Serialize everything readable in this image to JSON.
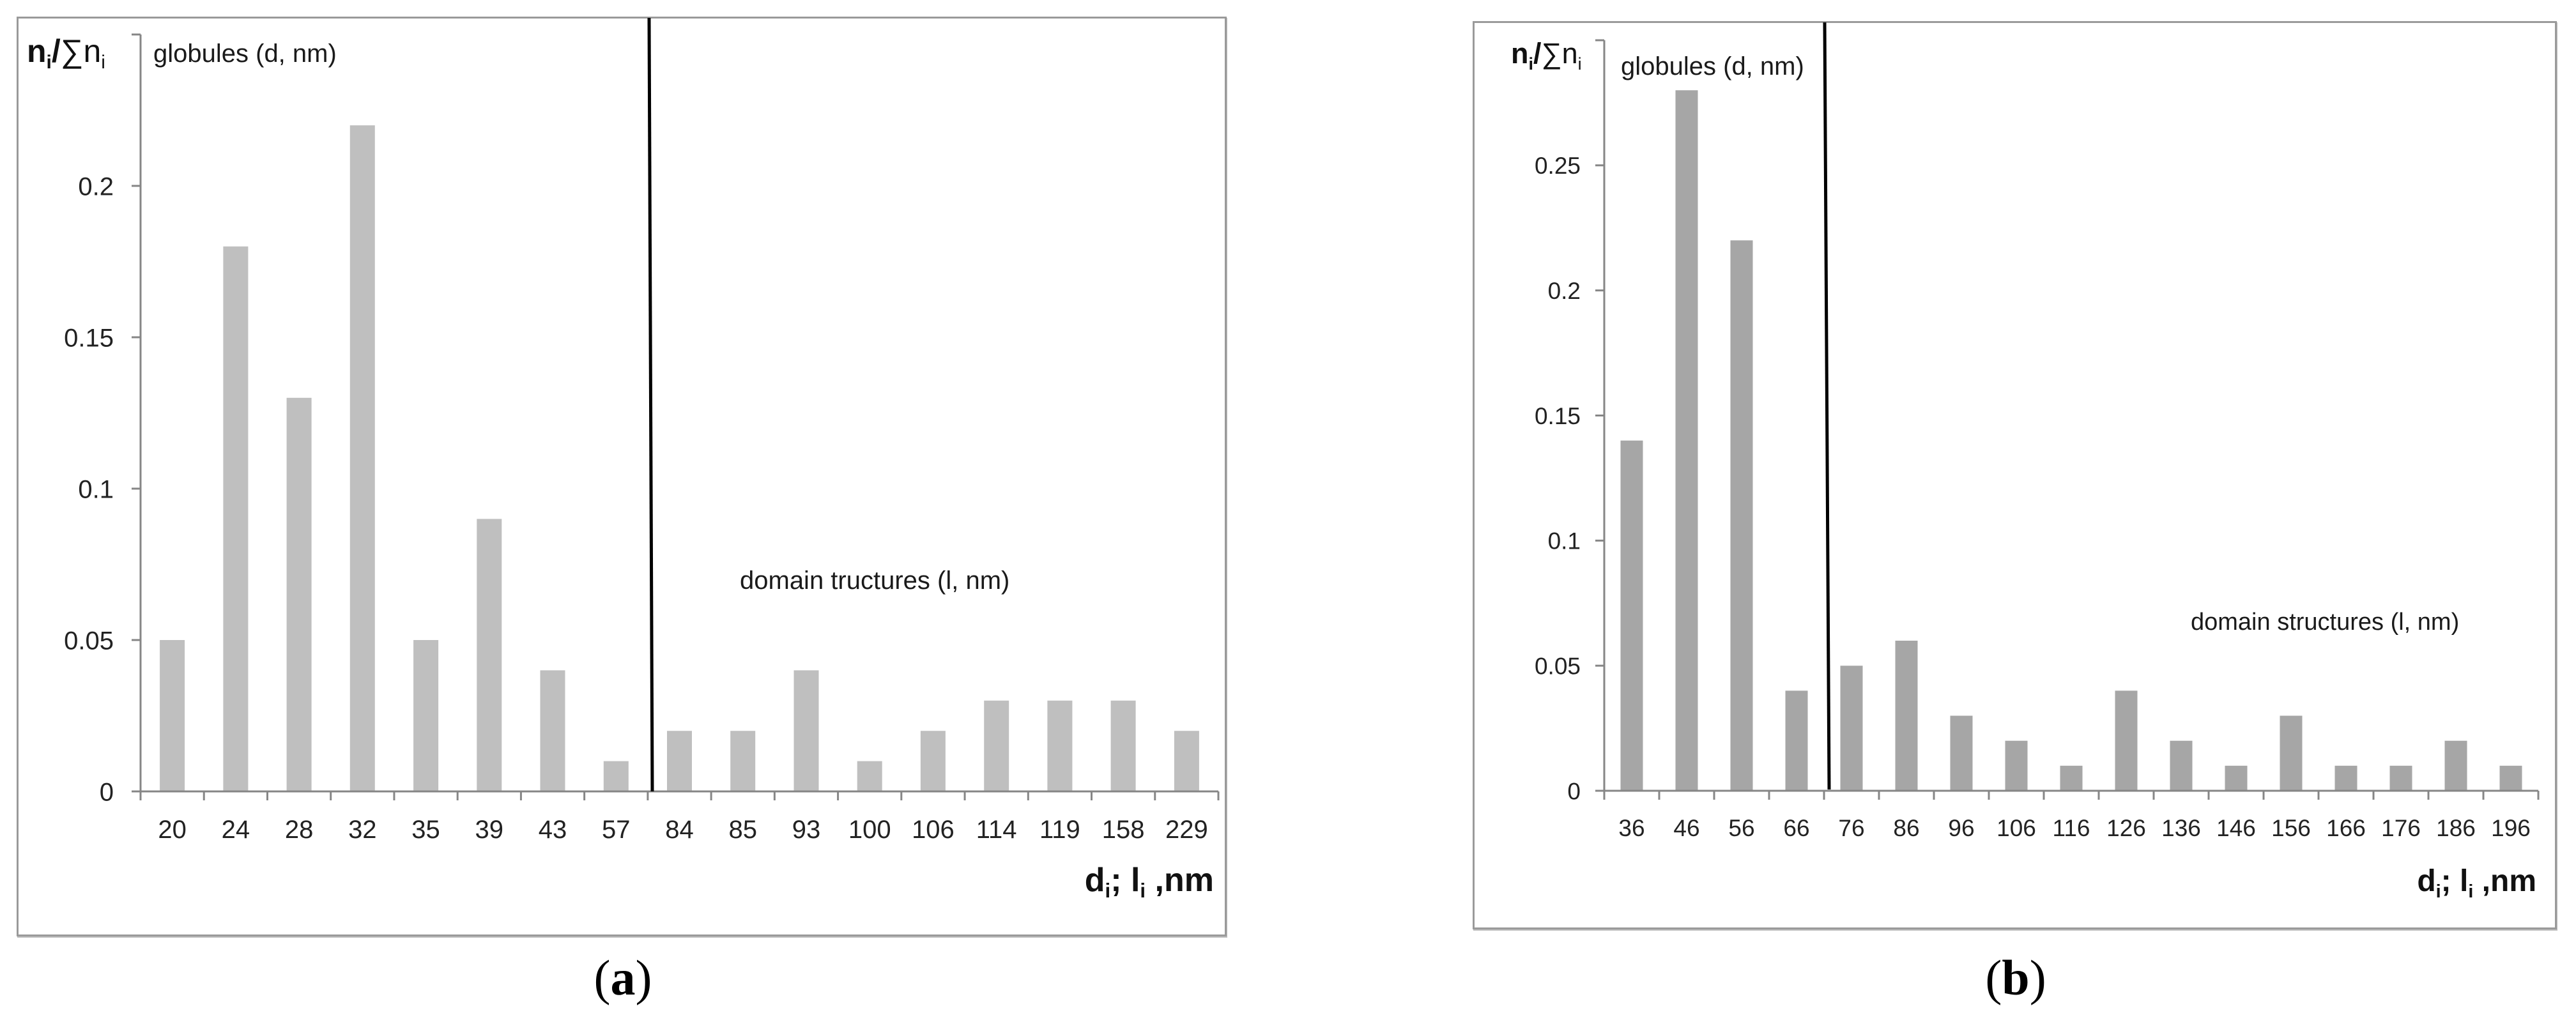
{
  "figure": {
    "panels": [
      {
        "id": "a",
        "caption": {
          "open": "(",
          "letter": "a",
          "close": ")"
        },
        "y_axis_title": {
          "bold_part": "n",
          "bold_sub": "i",
          "slash": "/",
          "sum_symbol": "∑",
          "regular_part": "n",
          "regular_sub": "i"
        },
        "x_axis_title": {
          "d": "d",
          "d_sub": "i",
          "sep": "; ",
          "l": "l",
          "l_sub": "i",
          "unit": " ,nm"
        },
        "annotations": {
          "left_region": "globules (d, nm)",
          "right_region": "domain tructures  (l, nm)"
        }
      },
      {
        "id": "b",
        "caption": {
          "open": "(",
          "letter": "b",
          "close": ")"
        },
        "y_axis_title": {
          "bold_part": "n",
          "bold_sub": "i",
          "slash": "/",
          "sum_symbol": "∑",
          "regular_part": "n",
          "regular_sub": "i"
        },
        "x_axis_title": {
          "d": "d",
          "d_sub": "i",
          "sep": "; ",
          "l": "l",
          "l_sub": "i",
          "unit": " ,nm"
        },
        "annotations": {
          "left_region": "globules (d, nm)",
          "right_region": "domain structures (l, nm)"
        }
      }
    ]
  },
  "chart_data": [
    {
      "type": "bar",
      "panel": "a",
      "title": "",
      "xlabel": "di; li ,nm",
      "ylabel": "ni/∑ni",
      "categories": [
        "20",
        "24",
        "28",
        "32",
        "35",
        "39",
        "43",
        "57",
        "84",
        "85",
        "93",
        "100",
        "106",
        "114",
        "119",
        "158",
        "229"
      ],
      "values": [
        0.05,
        0.18,
        0.13,
        0.22,
        0.05,
        0.09,
        0.04,
        0.01,
        0.02,
        0.02,
        0.04,
        0.01,
        0.02,
        0.03,
        0.03,
        0.03,
        0.02
      ],
      "region_split_after_category": "57",
      "regions": [
        {
          "label": "globules (d, nm)",
          "categories": [
            "20",
            "24",
            "28",
            "32",
            "35",
            "39",
            "43",
            "57"
          ]
        },
        {
          "label": "domain tructures  (l, nm)",
          "categories": [
            "84",
            "85",
            "93",
            "100",
            "106",
            "114",
            "119",
            "158",
            "229"
          ]
        }
      ],
      "yticks": [
        "0",
        "0.05",
        "0.1",
        "0.15",
        "0.2"
      ],
      "ylim": [
        0,
        0.25
      ],
      "grid": false,
      "legend": "none",
      "bar_color": "#bfbfbf"
    },
    {
      "type": "bar",
      "panel": "b",
      "title": "",
      "xlabel": "di; li ,nm",
      "ylabel": "ni/∑ni",
      "categories": [
        "36",
        "46",
        "56",
        "66",
        "76",
        "86",
        "96",
        "106",
        "116",
        "126",
        "136",
        "146",
        "156",
        "166",
        "176",
        "186",
        "196"
      ],
      "values": [
        0.14,
        0.28,
        0.22,
        0.04,
        0.05,
        0.06,
        0.03,
        0.02,
        0.01,
        0.04,
        0.02,
        0.01,
        0.03,
        0.01,
        0.01,
        0.02,
        0.01
      ],
      "region_split_after_category": "66",
      "regions": [
        {
          "label": "globules (d, nm)",
          "categories": [
            "36",
            "46",
            "56",
            "66"
          ]
        },
        {
          "label": "domain structures (l, nm)",
          "categories": [
            "76",
            "86",
            "96",
            "106",
            "116",
            "126",
            "136",
            "146",
            "156",
            "166",
            "176",
            "186",
            "196"
          ]
        }
      ],
      "yticks": [
        "0",
        "0.05",
        "0.1",
        "0.15",
        "0.2",
        "0.25"
      ],
      "ylim": [
        0,
        0.3
      ],
      "grid": false,
      "legend": "none",
      "bar_color": "#a6a6a6"
    }
  ]
}
